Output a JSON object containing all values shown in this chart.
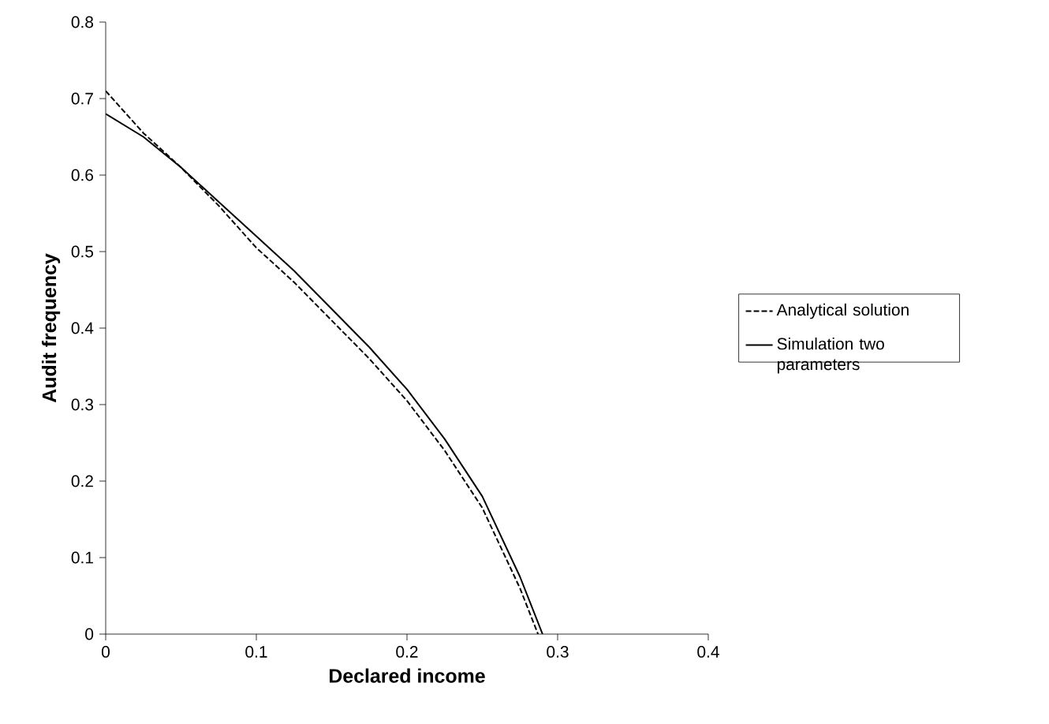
{
  "chart_data": {
    "type": "line",
    "xlabel": "Declared income",
    "ylabel": "Audit frequency",
    "xlim": [
      0,
      0.4
    ],
    "xticks": [
      0,
      0.1,
      0.2,
      0.3,
      0.4
    ],
    "ylim": [
      0,
      0.8
    ],
    "yticks": [
      0,
      0.1,
      0.2,
      0.3,
      0.4,
      0.5,
      0.6,
      0.7,
      0.8
    ],
    "legend": "right",
    "marker": "none",
    "series": [
      {
        "name": "Analytical solution",
        "color": "#000000",
        "line_style": "dashed",
        "x": [
          0,
          0.025,
          0.05,
          0.075,
          0.1,
          0.125,
          0.15,
          0.175,
          0.2,
          0.225,
          0.25,
          0.275,
          0.287
        ],
        "values": [
          0.71,
          0.655,
          0.61,
          0.56,
          0.505,
          0.46,
          0.41,
          0.36,
          0.305,
          0.24,
          0.165,
          0.06,
          0
        ]
      },
      {
        "name": "Simulation two parameters",
        "color": "#000000",
        "line_style": "solid",
        "x": [
          0,
          0.025,
          0.05,
          0.075,
          0.1,
          0.125,
          0.15,
          0.175,
          0.2,
          0.225,
          0.25,
          0.275,
          0.29
        ],
        "values": [
          0.68,
          0.65,
          0.61,
          0.565,
          0.52,
          0.475,
          0.425,
          0.375,
          0.32,
          0.255,
          0.18,
          0.075,
          0
        ]
      }
    ]
  }
}
